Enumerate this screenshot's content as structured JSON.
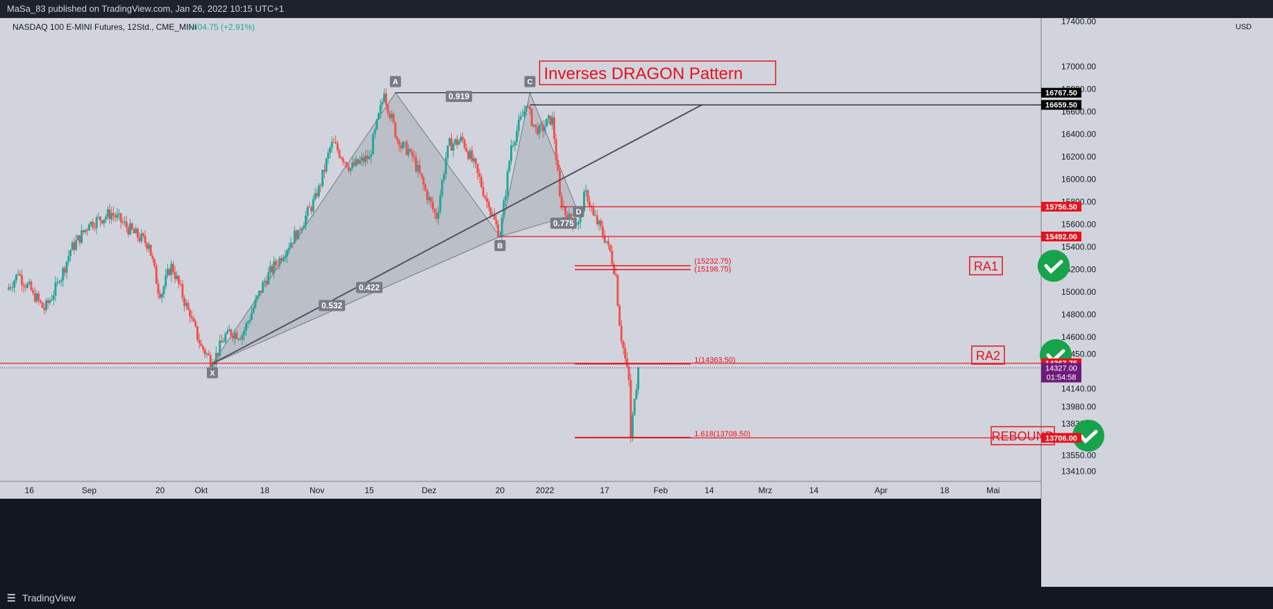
{
  "header": {
    "publish_line": "MaSa_83 published on TradingView.com, Jan 26, 2022 10:15 UTC+1"
  },
  "footer": {
    "logo_icon": "tradingview-logo-icon",
    "brand": "TradingView"
  },
  "colors": {
    "bg": "#d1d4dc",
    "up": "#26a69a",
    "down": "#ef5350",
    "red": "#e8111c",
    "text": "#131722",
    "pattern_fill": "#a9adb8",
    "check": "#16a34a",
    "price_tag": "#6d1b7b"
  },
  "symbol": {
    "name": "NASDAQ 100 E-MINI Futures, 12Std., CME_MINI",
    "change": "+404.75 (+2.91%)"
  },
  "chart_data": {
    "type": "candlestick",
    "title": "Inverses DRAGON Pattern",
    "xlabel": "",
    "ylabel": "USD",
    "currency": "USD",
    "ylim": [
      13320,
      17430
    ],
    "xlim": [
      "2021-08-10",
      "2022-05-12"
    ],
    "x_ticks": [
      {
        "label": "16",
        "date": "2021-08-16"
      },
      {
        "label": "Sep",
        "date": "2021-09-01"
      },
      {
        "label": "20",
        "date": "2021-09-20"
      },
      {
        "label": "Okt",
        "date": "2021-10-01"
      },
      {
        "label": "18",
        "date": "2021-10-18"
      },
      {
        "label": "Nov",
        "date": "2021-11-01"
      },
      {
        "label": "15",
        "date": "2021-11-15"
      },
      {
        "label": "Dez",
        "date": "2021-12-01"
      },
      {
        "label": "20",
        "date": "2021-12-20"
      },
      {
        "label": "2022",
        "date": "2022-01-01"
      },
      {
        "label": "17",
        "date": "2022-01-17"
      },
      {
        "label": "Feb",
        "date": "2022-02-01"
      },
      {
        "label": "14",
        "date": "2022-02-14"
      },
      {
        "label": "Mrz",
        "date": "2022-03-01"
      },
      {
        "label": "14",
        "date": "2022-03-14"
      },
      {
        "label": "Apr",
        "date": "2022-04-01"
      },
      {
        "label": "18",
        "date": "2022-04-18"
      },
      {
        "label": "Mai",
        "date": "2022-05-01"
      }
    ],
    "y_ticks": [
      "17400.00",
      "17000.00",
      "16800.00",
      "16600.00",
      "16400.00",
      "16200.00",
      "16000.00",
      "15800.00",
      "15600.00",
      "15400.00",
      "15200.00",
      "15000.00",
      "14800.00",
      "14600.00",
      "14450.00",
      "14140.00",
      "13980.00",
      "13830.00",
      "13550.00",
      "13410.00"
    ],
    "price_path": [
      {
        "date": "2021-08-10",
        "price": 15020
      },
      {
        "date": "2021-08-13",
        "price": 15160
      },
      {
        "date": "2021-08-17",
        "price": 14990
      },
      {
        "date": "2021-08-20",
        "price": 14840
      },
      {
        "date": "2021-08-24",
        "price": 15090
      },
      {
        "date": "2021-08-27",
        "price": 15370
      },
      {
        "date": "2021-09-01",
        "price": 15600
      },
      {
        "date": "2021-09-07",
        "price": 15700
      },
      {
        "date": "2021-09-13",
        "price": 15520
      },
      {
        "date": "2021-09-17",
        "price": 15420
      },
      {
        "date": "2021-09-20",
        "price": 14950
      },
      {
        "date": "2021-09-23",
        "price": 15250
      },
      {
        "date": "2021-09-28",
        "price": 14780
      },
      {
        "date": "2021-10-01",
        "price": 14520
      },
      {
        "date": "2021-10-04",
        "price": 14370
      },
      {
        "date": "2021-10-08",
        "price": 14650
      },
      {
        "date": "2021-10-12",
        "price": 14620
      },
      {
        "date": "2021-10-18",
        "price": 15100
      },
      {
        "date": "2021-10-22",
        "price": 15300
      },
      {
        "date": "2021-10-27",
        "price": 15550
      },
      {
        "date": "2021-11-01",
        "price": 15850
      },
      {
        "date": "2021-11-05",
        "price": 16330
      },
      {
        "date": "2021-11-10",
        "price": 16100
      },
      {
        "date": "2021-11-15",
        "price": 16200
      },
      {
        "date": "2021-11-19",
        "price": 16760
      },
      {
        "date": "2021-11-23",
        "price": 16300
      },
      {
        "date": "2021-11-26",
        "price": 16250
      },
      {
        "date": "2021-11-30",
        "price": 15900
      },
      {
        "date": "2021-12-03",
        "price": 15650
      },
      {
        "date": "2021-12-06",
        "price": 16300
      },
      {
        "date": "2021-12-10",
        "price": 16350
      },
      {
        "date": "2021-12-14",
        "price": 16050
      },
      {
        "date": "2021-12-17",
        "price": 15750
      },
      {
        "date": "2021-12-20",
        "price": 15500
      },
      {
        "date": "2021-12-23",
        "price": 16300
      },
      {
        "date": "2021-12-27",
        "price": 16650
      },
      {
        "date": "2021-12-30",
        "price": 16400
      },
      {
        "date": "2022-01-03",
        "price": 16550
      },
      {
        "date": "2022-01-05",
        "price": 15850
      },
      {
        "date": "2022-01-07",
        "price": 15650
      },
      {
        "date": "2022-01-10",
        "price": 15620
      },
      {
        "date": "2022-01-12",
        "price": 15900
      },
      {
        "date": "2022-01-14",
        "price": 15680
      },
      {
        "date": "2022-01-18",
        "price": 15420
      },
      {
        "date": "2022-01-20",
        "price": 15150
      },
      {
        "date": "2022-01-21",
        "price": 14700
      },
      {
        "date": "2022-01-24",
        "price": 14100
      },
      {
        "date": "2022-01-24",
        "price": 13706
      },
      {
        "date": "2022-01-25",
        "price": 14050
      },
      {
        "date": "2022-01-26",
        "price": 14327
      }
    ],
    "pattern": {
      "points": [
        {
          "label": "X",
          "date": "2021-10-04",
          "price": 14363.5
        },
        {
          "label": "A",
          "date": "2021-11-22",
          "price": 16767.5
        },
        {
          "label": "B",
          "date": "2021-12-20",
          "price": 15492
        },
        {
          "label": "C",
          "date": "2021-12-28",
          "price": 16767.5
        },
        {
          "label": "D",
          "date": "2022-01-10",
          "price": 15700
        }
      ],
      "ratios": [
        {
          "label": "0.919",
          "date": "2021-12-09",
          "price": 16735
        },
        {
          "label": "0.775",
          "date": "2022-01-06",
          "price": 15610
        },
        {
          "label": "0.422",
          "date": "2021-11-15",
          "price": 15040
        },
        {
          "label": "0.532",
          "date": "2021-11-05",
          "price": 14880
        }
      ],
      "trendline": {
        "from": {
          "date": "2021-10-04",
          "price": 14363.5
        },
        "to": {
          "date": "2022-02-12",
          "price": 16659.5
        }
      }
    },
    "levels": [
      {
        "price": 16767.5,
        "label": "16767.50",
        "kind": "black"
      },
      {
        "price": 16659.5,
        "label": "16659.50",
        "kind": "black"
      },
      {
        "price": 15756.5,
        "label": "15756.50",
        "kind": "red"
      },
      {
        "price": 15492.0,
        "label": "15492.00",
        "kind": "red"
      },
      {
        "price": 14367.75,
        "label": "14367.75",
        "kind": "red"
      },
      {
        "price": 13706.0,
        "label": "13706.00",
        "kind": "red"
      }
    ],
    "fib_labels": [
      {
        "text": "(15232.75)",
        "price": 15232.75
      },
      {
        "text": "(15198.75)",
        "price": 15198.75
      },
      {
        "text": "1(14363.50)",
        "price": 14363.5
      },
      {
        "text": "1.618(13708.50)",
        "price": 13708.5
      }
    ],
    "current_price": {
      "price": 14327,
      "label": "14327.00",
      "countdown": "01:54:58"
    },
    "annotations": [
      {
        "text": "RA1",
        "date": "2022-03-02",
        "price": 15232,
        "check": true
      },
      {
        "text": "RA2",
        "date": "2022-03-02",
        "price": 14440,
        "check": true
      },
      {
        "text": "REBOUND",
        "date": "2022-03-02",
        "price": 13725,
        "check": true
      }
    ]
  }
}
